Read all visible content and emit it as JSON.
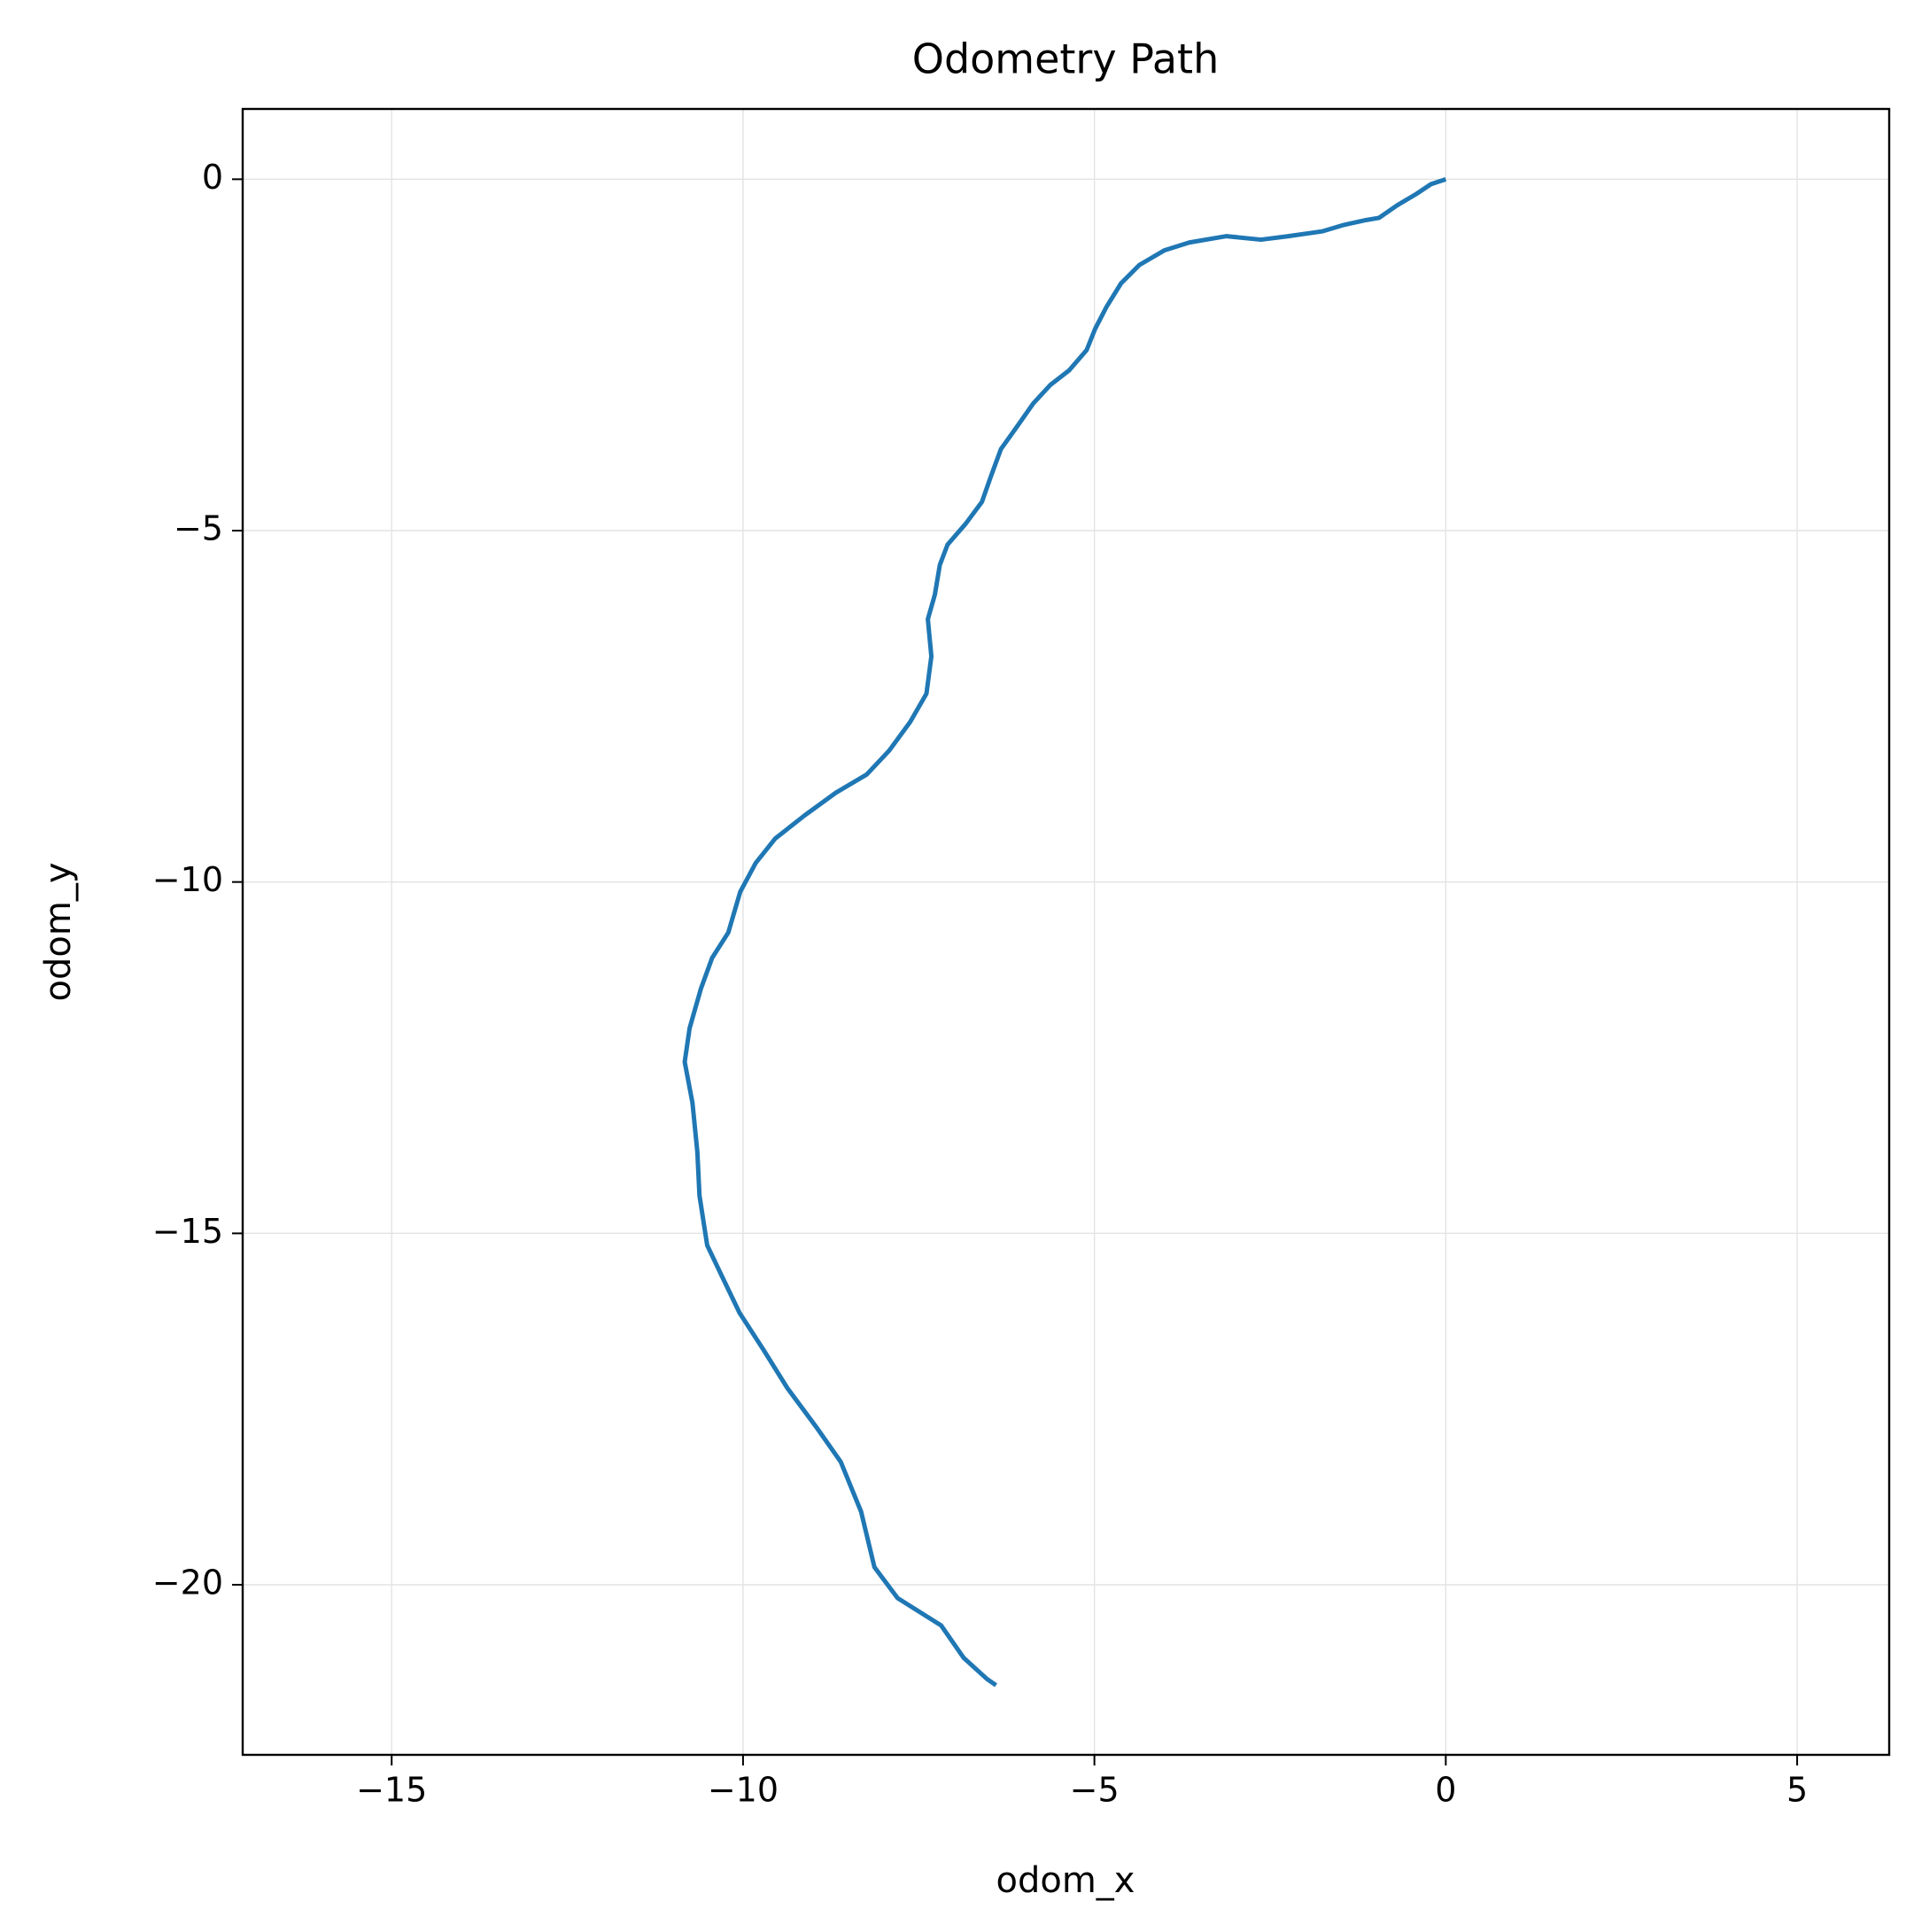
{
  "chart_data": {
    "type": "line",
    "title": "Odometry Path",
    "xlabel": "odom_x",
    "ylabel": "odom_y",
    "x": [
      0,
      -0.21,
      -0.42,
      -0.69,
      -0.95,
      -1.13,
      -1.45,
      -1.75,
      -2.24,
      -2.63,
      -3.12,
      -3.65,
      -4.0,
      -4.36,
      -4.62,
      -4.83,
      -4.99,
      -5.11,
      -5.36,
      -5.63,
      -5.87,
      -6.08,
      -6.33,
      -6.47,
      -6.6,
      -6.83,
      -7.09,
      -7.2,
      -7.27,
      -7.37,
      -7.32,
      -7.39,
      -7.62,
      -7.92,
      -8.24,
      -8.68,
      -9.12,
      -9.54,
      -9.82,
      -10.04,
      -10.21,
      -10.44,
      -10.6,
      -10.76,
      -10.83,
      -10.72,
      -10.65,
      -10.62,
      -10.51,
      -10.3,
      -10.05,
      -9.7,
      -9.37,
      -8.94,
      -8.61,
      -8.32,
      -8.13,
      -7.8,
      -7.18,
      -6.86,
      -6.53,
      -6.4
    ],
    "values": [
      0,
      -0.07,
      -0.21,
      -0.37,
      -0.55,
      -0.58,
      -0.65,
      -0.74,
      -0.81,
      -0.86,
      -0.81,
      -0.9,
      -1.01,
      -1.22,
      -1.48,
      -1.82,
      -2.13,
      -2.43,
      -2.72,
      -2.93,
      -3.19,
      -3.49,
      -3.84,
      -4.22,
      -4.59,
      -4.9,
      -5.2,
      -5.49,
      -5.91,
      -6.26,
      -6.79,
      -7.32,
      -7.72,
      -8.13,
      -8.47,
      -8.73,
      -9.05,
      -9.38,
      -9.73,
      -10.14,
      -10.72,
      -11.08,
      -11.52,
      -12.08,
      -12.56,
      -13.14,
      -13.84,
      -14.46,
      -15.17,
      -15.61,
      -16.13,
      -16.67,
      -17.2,
      -17.78,
      -18.25,
      -18.96,
      -19.75,
      -20.19,
      -20.58,
      -21.04,
      -21.34,
      -21.43
    ],
    "color": "#1f77b4",
    "xlim": [
      -17.12,
      6.31
    ],
    "xticks": [
      {
        "value": -15,
        "label": "−15"
      },
      {
        "value": -10,
        "label": "−10"
      },
      {
        "value": -5,
        "label": "−5"
      },
      0,
      5
    ],
    "ylim": [
      -22.42,
      1.0
    ],
    "yticks": [
      0,
      {
        "value": -5,
        "label": "−5"
      },
      {
        "value": -10,
        "label": "−10"
      },
      {
        "value": -15,
        "label": "−15"
      },
      {
        "value": -20,
        "label": "−20"
      }
    ],
    "grid": true
  }
}
